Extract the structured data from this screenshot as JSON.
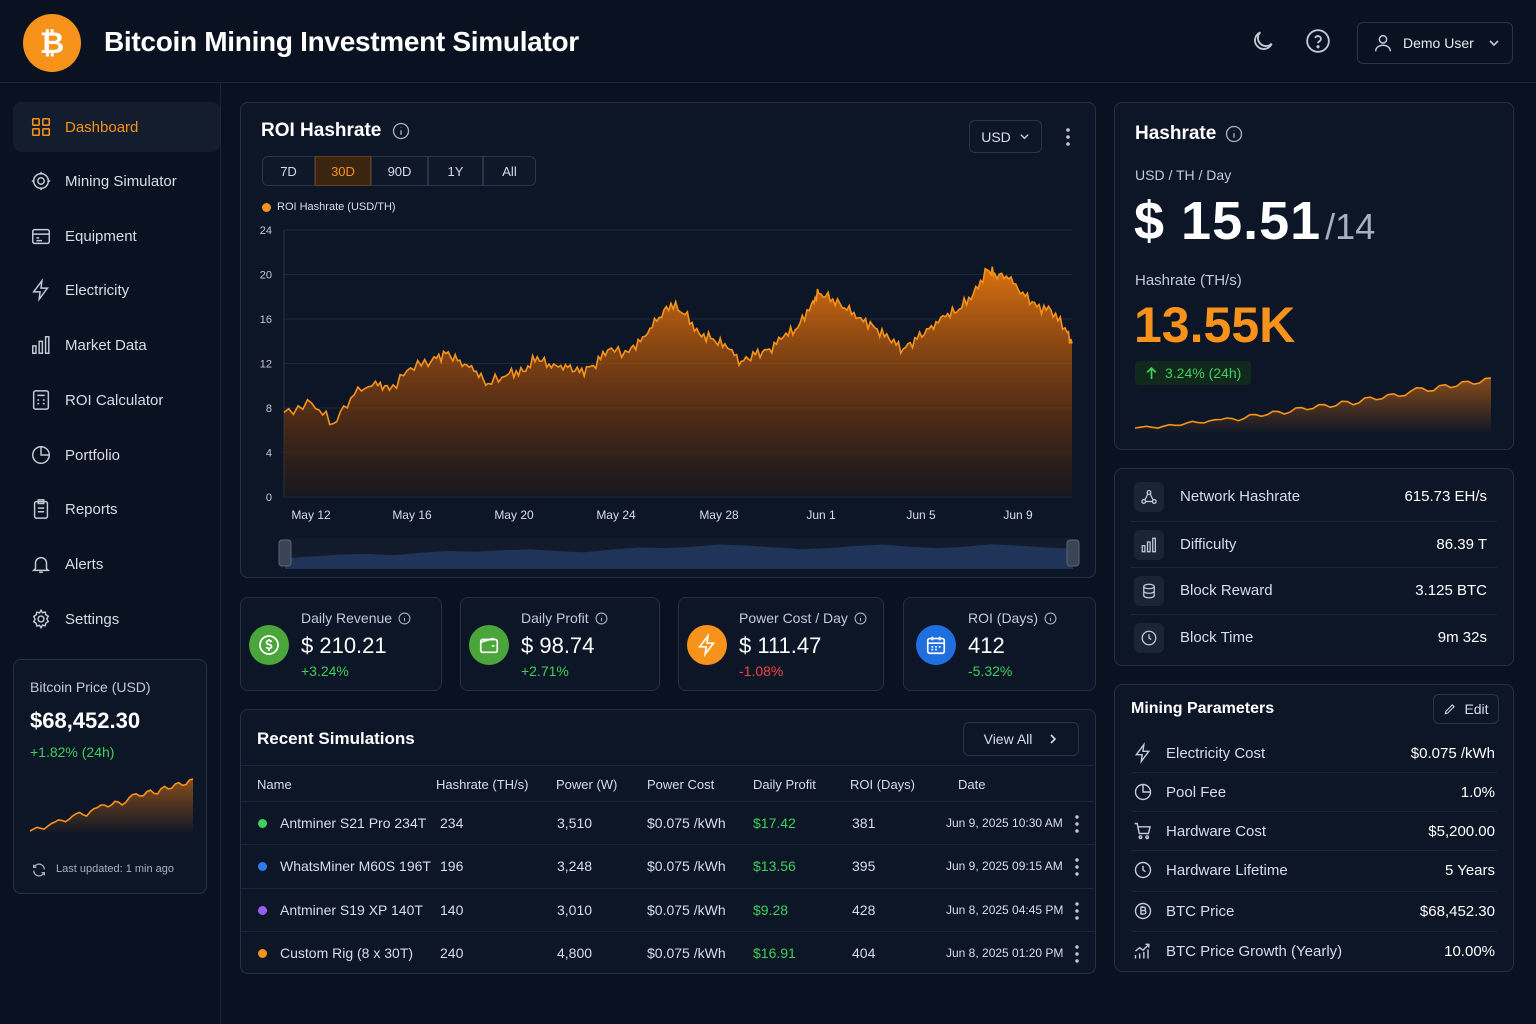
{
  "header": {
    "title": "Bitcoin Mining Investment Simulator",
    "user": "Demo User"
  },
  "sidebar": {
    "items": [
      {
        "label": "Dashboard",
        "icon": "grid-icon"
      },
      {
        "label": "Mining Simulator",
        "icon": "chip-icon"
      },
      {
        "label": "Equipment",
        "icon": "equipment-icon"
      },
      {
        "label": "Electricity",
        "icon": "lightning-icon"
      },
      {
        "label": "Market Data",
        "icon": "bar-chart-icon"
      },
      {
        "label": "ROI Calculator",
        "icon": "calculator-icon"
      },
      {
        "label": "Portfolio",
        "icon": "pie-chart-icon"
      },
      {
        "label": "Reports",
        "icon": "clipboard-icon"
      },
      {
        "label": "Alerts",
        "icon": "bell-icon"
      },
      {
        "label": "Settings",
        "icon": "gear-icon"
      }
    ],
    "price_card": {
      "label": "Bitcoin Price (USD)",
      "value": "$68,452.30",
      "change": "+1.82% (24h)",
      "updated": "Last updated: 1 min ago",
      "sparkline": [
        6,
        7,
        6.5,
        8,
        9,
        8.5,
        10,
        11,
        10,
        12,
        13,
        12.5,
        14,
        13,
        15,
        16,
        15.5,
        17,
        16,
        18,
        17.5,
        19,
        18.5,
        20
      ]
    }
  },
  "roi_chart": {
    "title": "ROI Hashrate",
    "currency": "USD",
    "ranges": [
      "7D",
      "30D",
      "90D",
      "1Y",
      "All"
    ],
    "active_range": "30D",
    "chart_data": {
      "type": "area",
      "title": "ROI Hashrate",
      "series": [
        {
          "name": "ROI Hashrate (USD/TH)"
        }
      ],
      "x_ticks": [
        "May 12",
        "May 16",
        "May 20",
        "May 24",
        "May 28",
        "Jun 1",
        "Jun 5",
        "Jun 9"
      ],
      "y_ticks": [
        "0",
        "4",
        "8",
        "12",
        "16",
        "20",
        "24"
      ],
      "ylim": [
        0,
        24
      ],
      "points": [
        [
          0,
          7.6
        ],
        [
          2,
          8.4
        ],
        [
          3.5,
          6.6
        ],
        [
          5,
          9.2
        ],
        [
          6.5,
          10.4
        ],
        [
          7.5,
          9.6
        ],
        [
          9,
          11.6
        ],
        [
          10.5,
          12.3
        ],
        [
          11.5,
          12.9
        ],
        [
          12.5,
          12.3
        ],
        [
          13.5,
          11.3
        ],
        [
          14.5,
          10.2
        ],
        [
          16,
          11.1
        ],
        [
          17,
          11.3
        ],
        [
          18,
          12.6
        ],
        [
          19,
          11.6
        ],
        [
          20,
          11.9
        ],
        [
          21,
          11.2
        ],
        [
          22,
          11.8
        ],
        [
          23,
          13.2
        ],
        [
          24.5,
          13.0
        ],
        [
          25.5,
          14.4
        ],
        [
          26.5,
          15.8
        ],
        [
          27.5,
          17.4
        ],
        [
          28.5,
          16.4
        ],
        [
          29.5,
          14.7
        ],
        [
          30.5,
          14.2
        ],
        [
          31.5,
          13.4
        ],
        [
          32.5,
          12.2
        ],
        [
          33.5,
          12.8
        ],
        [
          34.5,
          13.3
        ],
        [
          35.5,
          14.4
        ],
        [
          36.5,
          15.2
        ],
        [
          37.5,
          17.4
        ],
        [
          38,
          18.3
        ],
        [
          39,
          17.8
        ],
        [
          40,
          16.8
        ],
        [
          41,
          16.1
        ],
        [
          42,
          15.2
        ],
        [
          43,
          14.2
        ],
        [
          44,
          13.3
        ],
        [
          45,
          14.2
        ],
        [
          46,
          15.4
        ],
        [
          47,
          16.2
        ],
        [
          48,
          16.9
        ],
        [
          49,
          18.3
        ],
        [
          50,
          20.4
        ],
        [
          50.5,
          20.1
        ],
        [
          51.5,
          19.6
        ],
        [
          52.5,
          18.4
        ],
        [
          53.5,
          17.1
        ],
        [
          54.5,
          16.8
        ],
        [
          55.5,
          15.2
        ],
        [
          56,
          13.8
        ]
      ],
      "x_domain": [
        0,
        56
      ],
      "overview": [
        3,
        3.5,
        4,
        4.2,
        3.8,
        4.5,
        5,
        4.8,
        5.2,
        5.5,
        5,
        4.6,
        5.4,
        6,
        5.8,
        6.2,
        6.8,
        6.5,
        6,
        5.5,
        5.8,
        6.4,
        6.8,
        6.2,
        5.8,
        6.2,
        6.9,
        6.5,
        6,
        5.6
      ]
    }
  },
  "stats": [
    {
      "label": "Daily Revenue",
      "value": "$ 210.21",
      "change": "+3.24%",
      "trend": "up",
      "icon": "dollar-icon",
      "color": "#4aa53a"
    },
    {
      "label": "Daily Profit",
      "value": "$ 98.74",
      "change": "+2.71%",
      "trend": "up",
      "icon": "wallet-icon",
      "color": "#4aa53a"
    },
    {
      "label": "Power Cost / Day",
      "value": "$ 111.47",
      "change": "-1.08%",
      "trend": "down",
      "icon": "lightning-icon",
      "color": "#f7931a"
    },
    {
      "label": "ROI (Days)",
      "value": "412",
      "change": "-5.32%",
      "trend": "up",
      "icon": "calendar-icon",
      "color": "#1f6fe0"
    }
  ],
  "simulations": {
    "title": "Recent Simulations",
    "view_all": "View All",
    "columns": [
      "Name",
      "Hashrate (TH/s)",
      "Power (W)",
      "Power Cost",
      "Daily Profit",
      "ROI (Days)",
      "Date"
    ],
    "rows": [
      {
        "dot": "#3fcf5a",
        "name": "Antminer S21 Pro 234T",
        "hashrate": "234",
        "power": "3,510",
        "cost": "$0.075 /kWh",
        "profit": "$17.42",
        "roi": "381",
        "date": "Jun 9, 2025 10:30 AM"
      },
      {
        "dot": "#2f7cf0",
        "name": "WhatsMiner M60S 196T",
        "hashrate": "196",
        "power": "3,248",
        "cost": "$0.075 /kWh",
        "profit": "$13.56",
        "roi": "395",
        "date": "Jun 9, 2025 09:15 AM"
      },
      {
        "dot": "#9b5cf0",
        "name": "Antminer S19 XP 140T",
        "hashrate": "140",
        "power": "3,010",
        "cost": "$0.075 /kWh",
        "profit": "$9.28",
        "roi": "428",
        "date": "Jun 8, 2025 04:45 PM"
      },
      {
        "dot": "#f7931a",
        "name": "Custom Rig (8 x 30T)",
        "hashrate": "240",
        "power": "4,800",
        "cost": "$0.075 /kWh",
        "profit": "$16.91",
        "roi": "404",
        "date": "Jun 8, 2025 01:20 PM"
      }
    ]
  },
  "hashrate_card": {
    "title": "Hashrate",
    "unit": "USD / TH / Day",
    "value": "$ 15.51",
    "value_suffix": "/14",
    "hashrate_label": "Hashrate (TH/s)",
    "hashrate_value": "13.55K",
    "change": "3.24% (24h)",
    "sparkline": [
      4,
      4.5,
      4,
      5,
      4.8,
      6,
      5.5,
      6.5,
      7,
      6.2,
      8,
      7.5,
      9,
      8.2,
      10,
      9.5,
      11,
      10.2,
      12,
      11,
      13,
      12.5,
      14,
      13.5,
      15,
      16,
      15.2,
      17,
      16.5,
      18,
      17.5,
      19
    ]
  },
  "network": {
    "items": [
      {
        "label": "Network Hashrate",
        "value": "615.73 EH/s",
        "icon": "network-icon"
      },
      {
        "label": "Difficulty",
        "value": "86.39 T",
        "icon": "bar-chart-icon"
      },
      {
        "label": "Block Reward",
        "value": "3.125 BTC",
        "icon": "database-icon"
      },
      {
        "label": "Block Time",
        "value": "9m 32s",
        "icon": "clock-icon"
      }
    ]
  },
  "params": {
    "title": "Mining Parameters",
    "edit": "Edit",
    "items": [
      {
        "label": "Electricity Cost",
        "value": "$0.075 /kWh",
        "icon": "lightning-icon"
      },
      {
        "label": "Pool Fee",
        "value": "1.0%",
        "icon": "pie-chart-icon"
      },
      {
        "label": "Hardware Cost",
        "value": "$5,200.00",
        "icon": "cart-icon"
      },
      {
        "label": "Hardware Lifetime",
        "value": "5 Years",
        "icon": "clock-icon"
      },
      {
        "label": "BTC Price",
        "value": "$68,452.30",
        "icon": "bitcoin-icon"
      },
      {
        "label": "BTC Price Growth (Yearly)",
        "value": "10.00%",
        "icon": "growth-icon"
      }
    ]
  }
}
